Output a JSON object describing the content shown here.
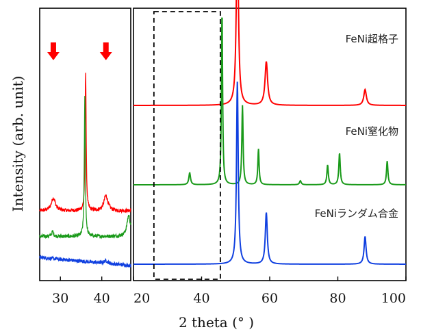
{
  "chart_data": [
    {
      "type": "line",
      "title": "",
      "xlabel": "",
      "ylabel": "Intensity (arb. unit)",
      "xlim": [
        25,
        47
      ],
      "xticks": [
        30,
        40
      ],
      "grid": false,
      "legend": "none",
      "annotations": [
        {
          "type": "arrow",
          "x": 28.3,
          "color": "#ff0000"
        },
        {
          "type": "arrow",
          "x": 41,
          "color": "#ff0000"
        }
      ],
      "series": [
        {
          "color": "#ff0000",
          "offset": 2.35,
          "noise": 0.08,
          "peaks": [
            {
              "x": 28.3,
              "height": 0.55,
              "width": 0.6
            },
            {
              "x": 36.1,
              "height": 6.0,
              "width": 0.15
            },
            {
              "x": 41,
              "height": 0.65,
              "width": 0.6
            }
          ]
        },
        {
          "color": "#1a9a1a",
          "offset": 1.25,
          "noise": 0.08,
          "peaks": [
            {
              "x": 28.1,
              "height": 0.2,
              "width": 0.3
            },
            {
              "x": 35.9,
              "height": 6.0,
              "width": 0.15
            },
            {
              "x": 46.5,
              "height": 0.9,
              "width": 0.5
            }
          ]
        },
        {
          "color": "#1040e0",
          "offset": 0.0,
          "noise": 0.08,
          "slope_start": 0.35,
          "peaks": [
            {
              "x": 41,
              "height": 0.12,
              "width": 0.5
            }
          ]
        }
      ]
    },
    {
      "type": "line",
      "title": "",
      "xlabel": "2 theta (° )",
      "ylabel": "",
      "xlim": [
        20,
        100
      ],
      "xticks": [
        20,
        40,
        60,
        80,
        100
      ],
      "grid": false,
      "legend": "inline",
      "highlight_box": {
        "x_range": [
          26,
          45.5
        ],
        "style": "dashed"
      },
      "series": [
        {
          "name": "FeNi超格子",
          "color": "#ff0000",
          "offset": 2.0,
          "peaks": [
            {
              "x": 50.5,
              "height": 2.4,
              "width": 0.35
            },
            {
              "x": 59,
              "height": 0.55,
              "width": 0.45
            },
            {
              "x": 88,
              "height": 0.2,
              "width": 0.45
            }
          ]
        },
        {
          "name": "FeNi窒化物",
          "color": "#1a9a1a",
          "offset": 1.0,
          "peaks": [
            {
              "x": 36.5,
              "height": 0.15,
              "width": 0.3
            },
            {
              "x": 46,
              "height": 2.2,
              "width": 0.2
            },
            {
              "x": 52,
              "height": 1.0,
              "width": 0.22
            },
            {
              "x": 56.7,
              "height": 0.45,
              "width": 0.22
            },
            {
              "x": 69,
              "height": 0.05,
              "width": 0.3
            },
            {
              "x": 77,
              "height": 0.25,
              "width": 0.25
            },
            {
              "x": 80.5,
              "height": 0.4,
              "width": 0.25
            },
            {
              "x": 94.5,
              "height": 0.3,
              "width": 0.25
            }
          ]
        },
        {
          "name": "FeNiランダム合金",
          "color": "#1040e0",
          "offset": 0.0,
          "peaks": [
            {
              "x": 50.5,
              "height": 2.3,
              "width": 0.3
            },
            {
              "x": 59,
              "height": 0.65,
              "width": 0.35
            },
            {
              "x": 88,
              "height": 0.35,
              "width": 0.35
            }
          ]
        }
      ]
    }
  ]
}
